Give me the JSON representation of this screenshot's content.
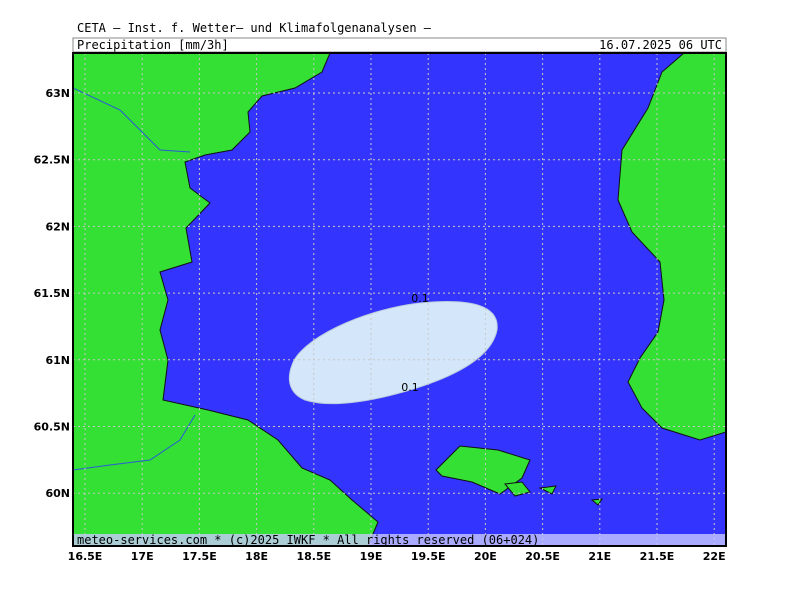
{
  "header": {
    "title": "CETA — Inst. f. Wetter— und Klimafolgenanalysen —",
    "parameter": "Precipitation [mm/3h]",
    "valid_time": "16.07.2025 06 UTC"
  },
  "map": {
    "x_tick_labels": [
      "16.5E",
      "17E",
      "17.5E",
      "18E",
      "18.5E",
      "19E",
      "19.5E",
      "20E",
      "20.5E",
      "21E",
      "21.5E",
      "22E"
    ],
    "y_tick_labels": [
      "63N",
      "62.5N",
      "62N",
      "61.5N",
      "61N",
      "60.5N",
      "60N"
    ],
    "contour_labels": [
      "0.1",
      "0.1"
    ],
    "footer": "meteo-services.com * (c)2025 IWKF * All rights reserved (06+024)"
  }
}
